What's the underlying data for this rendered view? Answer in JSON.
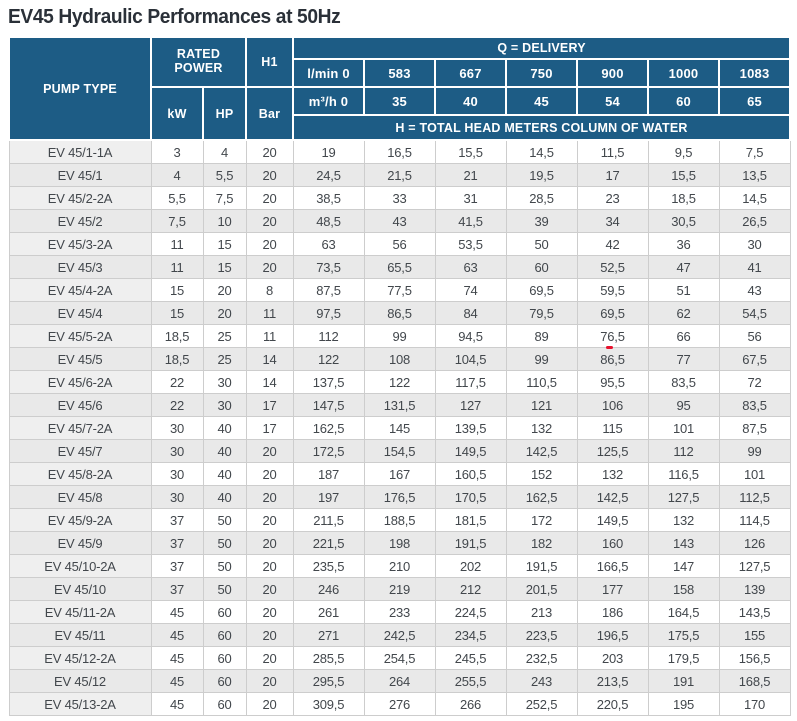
{
  "page": {
    "title": "EV45 Hydraulic Performances at 50Hz"
  },
  "table": {
    "headers": {
      "pump_type": "PUMP TYPE",
      "rated_power": "RATED POWER",
      "h1": "H1",
      "q_delivery": "Q = DELIVERY",
      "kw": "kW",
      "hp": "HP",
      "bar": "Bar",
      "delivery_lmin": [
        "l/min 0",
        "583",
        "667",
        "750",
        "900",
        "1000",
        "1083"
      ],
      "delivery_m3h": [
        "m³/h 0",
        "35",
        "40",
        "45",
        "54",
        "60",
        "65"
      ],
      "total_head_note": "H = TOTAL HEAD METERS COLUMN OF WATER"
    },
    "rows": [
      {
        "pump": "EV 45/1-1A",
        "kw": "3",
        "hp": "4",
        "bar": "20",
        "heads": [
          "19",
          "16,5",
          "15,5",
          "14,5",
          "11,5",
          "9,5",
          "7,5"
        ]
      },
      {
        "pump": "EV 45/1",
        "kw": "4",
        "hp": "5,5",
        "bar": "20",
        "heads": [
          "24,5",
          "21,5",
          "21",
          "19,5",
          "17",
          "15,5",
          "13,5"
        ]
      },
      {
        "pump": "EV 45/2-2A",
        "kw": "5,5",
        "hp": "7,5",
        "bar": "20",
        "heads": [
          "38,5",
          "33",
          "31",
          "28,5",
          "23",
          "18,5",
          "14,5"
        ]
      },
      {
        "pump": "EV 45/2",
        "kw": "7,5",
        "hp": "10",
        "bar": "20",
        "heads": [
          "48,5",
          "43",
          "41,5",
          "39",
          "34",
          "30,5",
          "26,5"
        ]
      },
      {
        "pump": "EV 45/3-2A",
        "kw": "11",
        "hp": "15",
        "bar": "20",
        "heads": [
          "63",
          "56",
          "53,5",
          "50",
          "42",
          "36",
          "30"
        ]
      },
      {
        "pump": "EV 45/3",
        "kw": "11",
        "hp": "15",
        "bar": "20",
        "heads": [
          "73,5",
          "65,5",
          "63",
          "60",
          "52,5",
          "47",
          "41"
        ]
      },
      {
        "pump": "EV 45/4-2A",
        "kw": "15",
        "hp": "20",
        "bar": "8",
        "heads": [
          "87,5",
          "77,5",
          "74",
          "69,5",
          "59,5",
          "51",
          "43"
        ]
      },
      {
        "pump": "EV 45/4",
        "kw": "15",
        "hp": "20",
        "bar": "11",
        "heads": [
          "97,5",
          "86,5",
          "84",
          "79,5",
          "69,5",
          "62",
          "54,5"
        ]
      },
      {
        "pump": "EV 45/5-2A",
        "kw": "18,5",
        "hp": "25",
        "bar": "11",
        "heads": [
          "112",
          "99",
          "94,5",
          "89",
          "76,5",
          "66",
          "56"
        ]
      },
      {
        "pump": "EV 45/5",
        "kw": "18,5",
        "hp": "25",
        "bar": "14",
        "heads": [
          "122",
          "108",
          "104,5",
          "99",
          "86,5",
          "77",
          "67,5"
        ]
      },
      {
        "pump": "EV 45/6-2A",
        "kw": "22",
        "hp": "30",
        "bar": "14",
        "heads": [
          "137,5",
          "122",
          "117,5",
          "110,5",
          "95,5",
          "83,5",
          "72"
        ]
      },
      {
        "pump": "EV 45/6",
        "kw": "22",
        "hp": "30",
        "bar": "17",
        "heads": [
          "147,5",
          "131,5",
          "127",
          "121",
          "106",
          "95",
          "83,5"
        ]
      },
      {
        "pump": "EV 45/7-2A",
        "kw": "30",
        "hp": "40",
        "bar": "17",
        "heads": [
          "162,5",
          "145",
          "139,5",
          "132",
          "115",
          "101",
          "87,5"
        ]
      },
      {
        "pump": "EV 45/7",
        "kw": "30",
        "hp": "40",
        "bar": "20",
        "heads": [
          "172,5",
          "154,5",
          "149,5",
          "142,5",
          "125,5",
          "112",
          "99"
        ]
      },
      {
        "pump": "EV 45/8-2A",
        "kw": "30",
        "hp": "40",
        "bar": "20",
        "heads": [
          "187",
          "167",
          "160,5",
          "152",
          "132",
          "116,5",
          "101"
        ]
      },
      {
        "pump": "EV 45/8",
        "kw": "30",
        "hp": "40",
        "bar": "20",
        "heads": [
          "197",
          "176,5",
          "170,5",
          "162,5",
          "142,5",
          "127,5",
          "112,5"
        ]
      },
      {
        "pump": "EV 45/9-2A",
        "kw": "37",
        "hp": "50",
        "bar": "20",
        "heads": [
          "211,5",
          "188,5",
          "181,5",
          "172",
          "149,5",
          "132",
          "114,5"
        ]
      },
      {
        "pump": "EV 45/9",
        "kw": "37",
        "hp": "50",
        "bar": "20",
        "heads": [
          "221,5",
          "198",
          "191,5",
          "182",
          "160",
          "143",
          "126"
        ]
      },
      {
        "pump": "EV 45/10-2A",
        "kw": "37",
        "hp": "50",
        "bar": "20",
        "heads": [
          "235,5",
          "210",
          "202",
          "191,5",
          "166,5",
          "147",
          "127,5"
        ]
      },
      {
        "pump": "EV 45/10",
        "kw": "37",
        "hp": "50",
        "bar": "20",
        "heads": [
          "246",
          "219",
          "212",
          "201,5",
          "177",
          "158",
          "139"
        ]
      },
      {
        "pump": "EV 45/11-2A",
        "kw": "45",
        "hp": "60",
        "bar": "20",
        "heads": [
          "261",
          "233",
          "224,5",
          "213",
          "186",
          "164,5",
          "143,5"
        ]
      },
      {
        "pump": "EV 45/11",
        "kw": "45",
        "hp": "60",
        "bar": "20",
        "heads": [
          "271",
          "242,5",
          "234,5",
          "223,5",
          "196,5",
          "175,5",
          "155"
        ]
      },
      {
        "pump": "EV 45/12-2A",
        "kw": "45",
        "hp": "60",
        "bar": "20",
        "heads": [
          "285,5",
          "254,5",
          "245,5",
          "232,5",
          "203",
          "179,5",
          "156,5"
        ]
      },
      {
        "pump": "EV 45/12",
        "kw": "45",
        "hp": "60",
        "bar": "20",
        "heads": [
          "295,5",
          "264",
          "255,5",
          "243",
          "213,5",
          "191",
          "168,5"
        ]
      },
      {
        "pump": "EV 45/13-2A",
        "kw": "45",
        "hp": "60",
        "bar": "20",
        "heads": [
          "309,5",
          "276",
          "266",
          "252,5",
          "220,5",
          "195",
          "170"
        ]
      }
    ]
  },
  "colors": {
    "header_blue": "#1d5c85",
    "stripe_gray": "#e9e9e9",
    "pump_column_gray": "#efefef",
    "border_gray": "#cdcdcd",
    "red_mark": "#e8112d"
  }
}
